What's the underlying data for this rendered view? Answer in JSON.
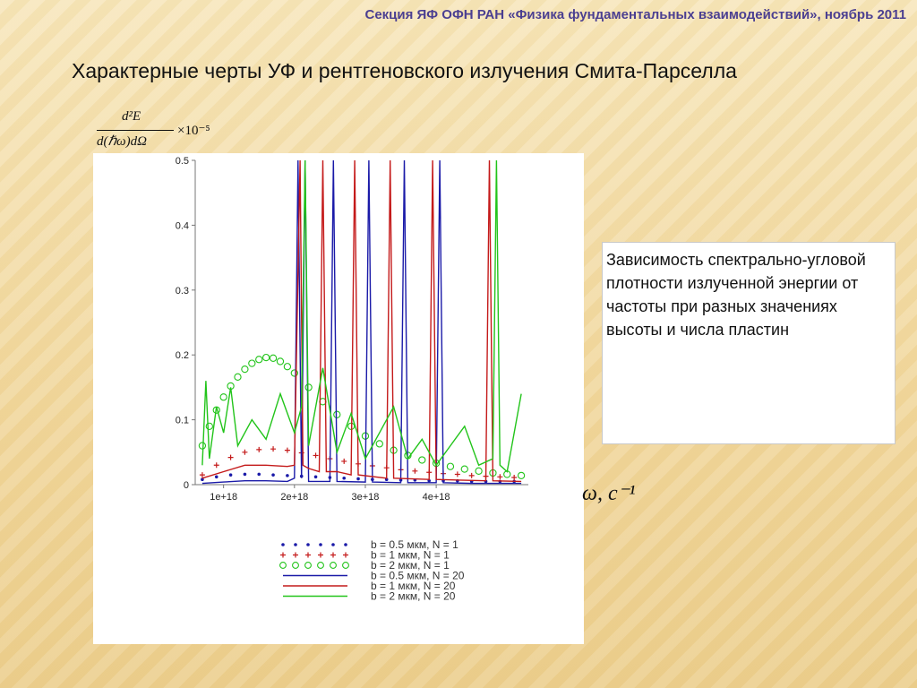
{
  "header": {
    "section": "Секция ЯФ ОФН РАН «Физика фундаментальных взаимодействий», ноябрь 2011"
  },
  "slide": {
    "title": "Характерные черты УФ и рентгеновского излучения Смита-Парселла",
    "y_formula": {
      "numerator": "d²E",
      "denominator": "d(ℏω)dΩ",
      "multiplier": "×10⁻⁵"
    },
    "x_unit": "ω, c⁻¹",
    "description": "Зависимость спектрально-угловой плотности излученной энергии от частоты при разных значениях высоты и числа пластин"
  },
  "colors": {
    "blue": "#1a1aa8",
    "red": "#c41a1a",
    "green": "#22c41a",
    "purple": "#7a1a7a"
  },
  "chart_data": {
    "type": "line",
    "xlim": [
      600000000000000000,
      5300000000000000000
    ],
    "ylim": [
      0,
      0.5
    ],
    "x_ticks": [
      1e+18,
      2e+18,
      3e+18,
      4e+18
    ],
    "x_tick_labels": [
      "1e+18",
      "2e+18",
      "3e+18",
      "4e+18"
    ],
    "y_ticks": [
      0,
      0.1,
      0.2,
      0.3,
      0.4,
      0.5
    ],
    "y_tick_labels": [
      "0",
      "0.1",
      "0.2",
      "0.3",
      "0.4",
      "0.5"
    ],
    "legend_position": "bottom",
    "series": [
      {
        "name": "b = 0.5 мкм, N = 1",
        "style": "dots",
        "color": "blue",
        "x": [
          7e+17,
          9e+17,
          1.1e+18,
          1.3e+18,
          1.5e+18,
          1.7e+18,
          1.9e+18,
          2.1e+18,
          2.3e+18,
          2.5e+18,
          2.7e+18,
          2.9e+18,
          3.1e+18,
          3.3e+18,
          3.5e+18,
          3.7e+18,
          3.9e+18,
          4.1e+18,
          4.3e+18,
          4.5e+18,
          4.7e+18,
          4.9e+18,
          5.1e+18
        ],
        "y": [
          0.008,
          0.012,
          0.015,
          0.016,
          0.016,
          0.015,
          0.014,
          0.013,
          0.012,
          0.011,
          0.01,
          0.009,
          0.008,
          0.008,
          0.007,
          0.007,
          0.006,
          0.006,
          0.006,
          0.005,
          0.005,
          0.005,
          0.005
        ]
      },
      {
        "name": "b = 1 мкм, N = 1",
        "style": "plus",
        "color": "red",
        "x": [
          7e+17,
          9e+17,
          1.1e+18,
          1.3e+18,
          1.5e+18,
          1.7e+18,
          1.9e+18,
          2.1e+18,
          2.3e+18,
          2.5e+18,
          2.7e+18,
          2.9e+18,
          3.1e+18,
          3.3e+18,
          3.5e+18,
          3.7e+18,
          3.9e+18,
          4.1e+18,
          4.3e+18,
          4.5e+18,
          4.7e+18,
          4.9e+18,
          5.1e+18
        ],
        "y": [
          0.015,
          0.03,
          0.042,
          0.05,
          0.054,
          0.055,
          0.053,
          0.049,
          0.045,
          0.04,
          0.036,
          0.032,
          0.029,
          0.026,
          0.023,
          0.021,
          0.019,
          0.017,
          0.016,
          0.014,
          0.013,
          0.012,
          0.011
        ]
      },
      {
        "name": "b = 2 мкм, N = 1",
        "style": "circles",
        "color": "green",
        "x": [
          7e+17,
          8e+17,
          9e+17,
          1e+18,
          1.1e+18,
          1.2e+18,
          1.3e+18,
          1.4e+18,
          1.5e+18,
          1.6e+18,
          1.7e+18,
          1.8e+18,
          1.9e+18,
          2e+18,
          2.2e+18,
          2.4e+18,
          2.6e+18,
          2.8e+18,
          3e+18,
          3.2e+18,
          3.4e+18,
          3.6e+18,
          3.8e+18,
          4e+18,
          4.2e+18,
          4.4e+18,
          4.6e+18,
          4.8e+18,
          5e+18,
          5.2e+18
        ],
        "y": [
          0.06,
          0.09,
          0.115,
          0.135,
          0.152,
          0.166,
          0.178,
          0.187,
          0.193,
          0.196,
          0.195,
          0.19,
          0.182,
          0.172,
          0.15,
          0.128,
          0.108,
          0.09,
          0.075,
          0.063,
          0.053,
          0.045,
          0.038,
          0.033,
          0.028,
          0.024,
          0.021,
          0.018,
          0.016,
          0.014
        ]
      },
      {
        "name": "b = 0.5 мкм, N = 20",
        "style": "solid",
        "color": "blue",
        "x": [
          7e+17,
          1e+18,
          1.3e+18,
          1.6e+18,
          1.9e+18,
          2e+18,
          2.05e+18,
          2.1e+18,
          2.15e+18,
          2.2e+18,
          2.5e+18,
          2.55e+18,
          2.6e+18,
          3e+18,
          3.05e+18,
          3.1e+18,
          3.5e+18,
          3.55e+18,
          3.6e+18,
          4e+18,
          4.05e+18,
          4.1e+18,
          4.5e+18,
          5.2e+18
        ],
        "y": [
          0.002,
          0.004,
          0.006,
          0.006,
          0.005,
          0.01,
          0.5,
          0.01,
          0.5,
          0.005,
          0.005,
          0.5,
          0.005,
          0.004,
          0.5,
          0.004,
          0.003,
          0.5,
          0.003,
          0.003,
          0.5,
          0.003,
          0.002,
          0.002
        ]
      },
      {
        "name": "b = 1 мкм, N = 20",
        "style": "solid",
        "color": "red",
        "x": [
          7e+17,
          1e+18,
          1.3e+18,
          1.6e+18,
          1.9e+18,
          2e+18,
          2.08e+18,
          2.12e+18,
          2.2e+18,
          2.35e+18,
          2.4e+18,
          2.45e+18,
          2.6e+18,
          2.8e+18,
          2.85e+18,
          2.9e+18,
          3.3e+18,
          3.35e+18,
          3.4e+18,
          3.9e+18,
          3.95e+18,
          4e+18,
          4.7e+18,
          4.75e+18,
          4.8e+18,
          5.2e+18
        ],
        "y": [
          0.01,
          0.02,
          0.03,
          0.03,
          0.028,
          0.03,
          0.5,
          0.03,
          0.025,
          0.02,
          0.5,
          0.02,
          0.02,
          0.015,
          0.5,
          0.015,
          0.01,
          0.5,
          0.01,
          0.008,
          0.5,
          0.008,
          0.006,
          0.5,
          0.006,
          0.005
        ]
      },
      {
        "name": "b = 2 мкм, N = 20",
        "style": "solid",
        "color": "green",
        "x": [
          7e+17,
          7.5e+17,
          8e+17,
          9e+17,
          1e+18,
          1.1e+18,
          1.2e+18,
          1.4e+18,
          1.6e+18,
          1.8e+18,
          2e+18,
          2.1e+18,
          2.15e+18,
          2.2e+18,
          2.4e+18,
          2.6e+18,
          2.8e+18,
          3e+18,
          3.2e+18,
          3.4e+18,
          3.6e+18,
          3.8e+18,
          4e+18,
          4.2e+18,
          4.4e+18,
          4.6e+18,
          4.8e+18,
          4.85e+18,
          4.9e+18,
          5e+18,
          5.2e+18
        ],
        "y": [
          0.03,
          0.16,
          0.04,
          0.12,
          0.08,
          0.15,
          0.06,
          0.1,
          0.07,
          0.14,
          0.08,
          0.12,
          0.5,
          0.06,
          0.18,
          0.05,
          0.11,
          0.04,
          0.08,
          0.12,
          0.04,
          0.07,
          0.03,
          0.06,
          0.09,
          0.03,
          0.04,
          0.5,
          0.03,
          0.02,
          0.14
        ]
      }
    ]
  }
}
